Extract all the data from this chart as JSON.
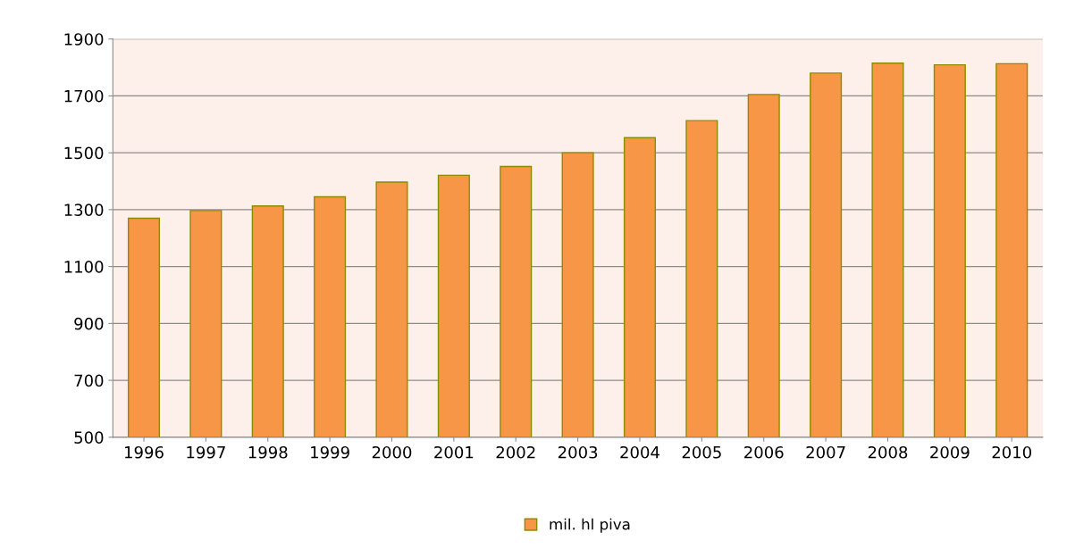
{
  "chart_data": {
    "type": "bar",
    "categories": [
      "1996",
      "1997",
      "1998",
      "1999",
      "2000",
      "2001",
      "2002",
      "2003",
      "2004",
      "2005",
      "2006",
      "2007",
      "2008",
      "2009",
      "2010"
    ],
    "series": [
      {
        "name": "mil. hl piva",
        "color": "#f79646",
        "values": [
          1270,
          1297,
          1313,
          1345,
          1397,
          1421,
          1452,
          1500,
          1553,
          1613,
          1705,
          1780,
          1815,
          1809,
          1813
        ]
      }
    ],
    "ylim": [
      500,
      1900
    ],
    "yticks": [
      500,
      700,
      900,
      1100,
      1300,
      1500,
      1700,
      1900
    ],
    "grid": "y",
    "legend": "bottom"
  }
}
